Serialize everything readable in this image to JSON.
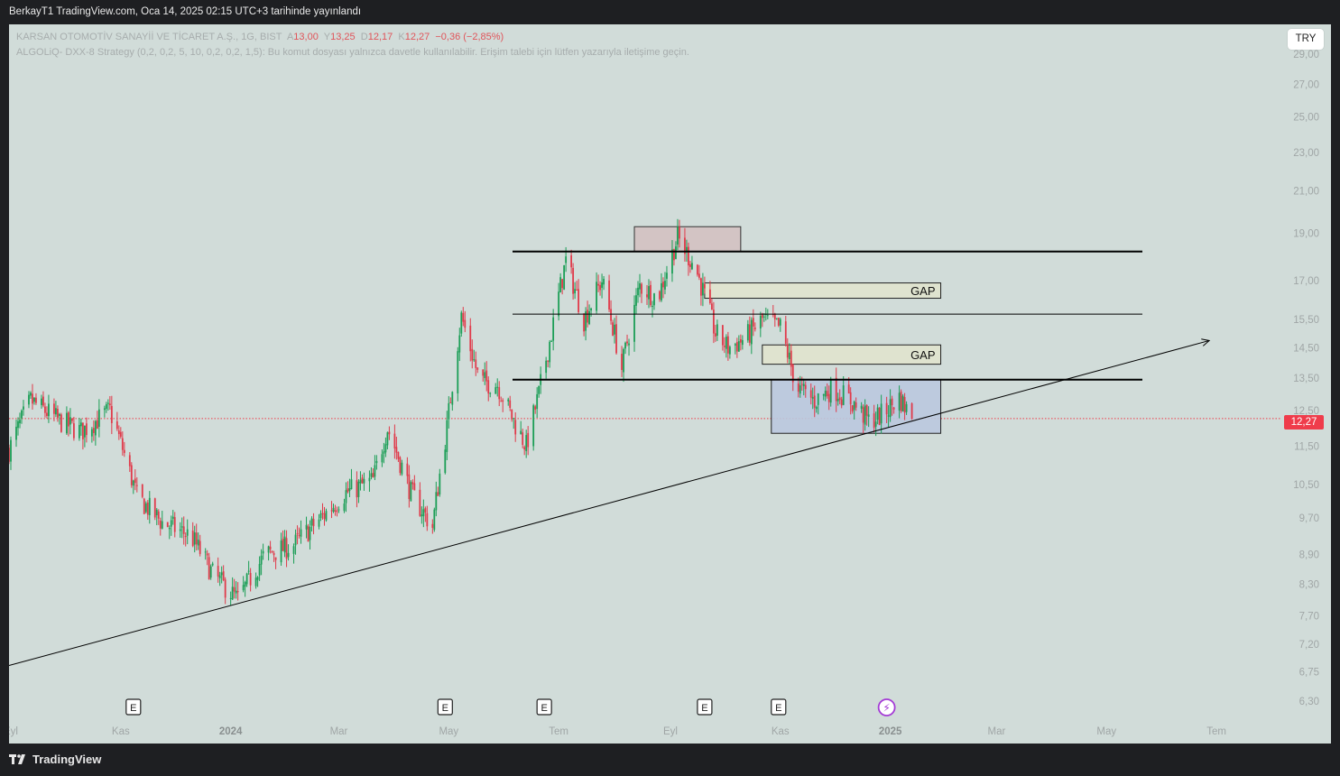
{
  "header": {
    "published": "BerkayT1 TradingView.com, Oca 14, 2025 02:15 UTC+3 tarihinde yayınlandı"
  },
  "legend": {
    "symbol": "KARSAN OTOMOTİV SANAYİİ VE TİCARET A.Ş., 1G, BIST",
    "open_label": "A",
    "open": "13,00",
    "high_label": "Y",
    "high": "13,25",
    "low_label": "D",
    "low": "12,17",
    "close_label": "K",
    "close": "12,27",
    "change": "−0,36 (−2,85%)",
    "strategy": "ALGOLiQ- DXX-8 Strategy (0,2, 0,2, 5, 10, 0,2, 0,2, 1,5): Bu komut dosyası yalnızca davetle kullanılabilir. Erişim talebi için lütfen yazarıyla iletişime geçin."
  },
  "currency": "TRY",
  "last_price_tag": "12,27",
  "footer": {
    "logo_text": "TradingView",
    "logo_icon": "tradingview-logo-icon"
  },
  "colors": {
    "up": "#1b9e56",
    "down": "#e03a4a",
    "background": "#d1dcd9",
    "price_line": "#ef3c4b"
  },
  "chart_data": {
    "type": "candlestick",
    "timeframe": "1G",
    "y_scale": "log",
    "ylim": [
      6.1,
      30.2
    ],
    "y_ticks": [
      "6,30",
      "6,75",
      "7,20",
      "7,70",
      "8,30",
      "8,90",
      "9,70",
      "10,50",
      "11,50",
      "12,50",
      "13,50",
      "14,50",
      "15,50",
      "17,00",
      "19,00",
      "21,00",
      "23,00",
      "25,00",
      "27,00",
      "29,00"
    ],
    "y_tick_values": [
      6.3,
      6.75,
      7.2,
      7.7,
      8.3,
      8.9,
      9.7,
      10.5,
      11.5,
      12.5,
      13.5,
      14.5,
      15.5,
      17.0,
      19.0,
      21.0,
      23.0,
      25.0,
      27.0,
      29.0
    ],
    "x_ticks": [
      "Eyl",
      "Kas",
      "2024",
      "Mar",
      "May",
      "Tem",
      "Eyl",
      "Kas",
      "2025",
      "Mar",
      "May",
      "Tem"
    ],
    "x_tick_dates": [
      "2023-09-01",
      "2023-11-01",
      "2024-01-01",
      "2024-03-01",
      "2024-05-01",
      "2024-07-01",
      "2024-09-01",
      "2024-11-01",
      "2025-01-01",
      "2025-03-01",
      "2025-05-01",
      "2025-07-01"
    ],
    "x_range": [
      "2023-08-31",
      "2025-08-06"
    ],
    "last_price": 12.27,
    "price_path_dates": [
      "2023-08-31",
      "2023-09-12",
      "2023-09-28",
      "2023-10-10",
      "2023-10-26",
      "2023-11-10",
      "2023-11-24",
      "2023-12-10",
      "2023-12-22",
      "2024-01-05",
      "2024-01-20",
      "2024-02-05",
      "2024-02-20",
      "2024-03-05",
      "2024-03-20",
      "2024-03-28",
      "2024-04-10",
      "2024-04-22",
      "2024-04-30",
      "2024-05-08",
      "2024-05-18",
      "2024-05-28",
      "2024-06-06",
      "2024-06-13",
      "2024-06-20",
      "2024-06-27",
      "2024-07-05",
      "2024-07-15",
      "2024-07-25",
      "2024-08-05",
      "2024-08-15",
      "2024-08-25",
      "2024-09-05",
      "2024-09-15",
      "2024-09-26",
      "2024-10-03",
      "2024-10-12",
      "2024-10-22",
      "2024-11-01",
      "2024-11-10",
      "2024-11-20",
      "2024-11-30",
      "2024-12-10",
      "2024-12-20",
      "2024-12-28",
      "2025-01-06",
      "2025-01-13"
    ],
    "price_path_values": [
      11.4,
      12.8,
      12.2,
      11.9,
      12.5,
      10.2,
      9.6,
      9.3,
      8.5,
      8.0,
      8.9,
      9.1,
      9.7,
      10.3,
      10.6,
      12.0,
      10.3,
      9.5,
      12.0,
      15.6,
      13.4,
      13.3,
      12.2,
      11.5,
      13.0,
      15.0,
      17.8,
      15.5,
      17.0,
      13.8,
      16.8,
      16.3,
      18.8,
      17.5,
      15.0,
      14.5,
      14.8,
      15.5,
      15.2,
      13.2,
      12.8,
      13.2,
      12.8,
      12.2,
      12.4,
      12.9,
      12.27
    ],
    "drawings": {
      "horizontal_levels": [
        18.2,
        15.7,
        13.45
      ],
      "gap_zones": [
        {
          "label": "GAP",
          "from": "2024-09-20",
          "to": "2025-01-29",
          "low": 16.3,
          "high": 16.9
        },
        {
          "label": "GAP",
          "from": "2024-10-22",
          "to": "2025-01-29",
          "low": 13.95,
          "high": 14.6
        }
      ],
      "resistance_box": {
        "from": "2024-08-12",
        "to": "2024-10-10",
        "low": 18.2,
        "high": 19.3
      },
      "range_box": {
        "from": "2024-10-27",
        "to": "2025-01-29",
        "low": 11.85,
        "high": 13.45
      },
      "trendline": {
        "from": [
          "2023-08-31",
          6.85
        ],
        "to": [
          "2025-06-27",
          14.75
        ]
      }
    },
    "event_markers": [
      {
        "label": "E",
        "type": "earnings",
        "date": "2023-11-08"
      },
      {
        "label": "E",
        "type": "earnings",
        "date": "2024-04-29"
      },
      {
        "label": "E",
        "type": "earnings",
        "date": "2024-06-23"
      },
      {
        "label": "E",
        "type": "earnings",
        "date": "2024-09-20"
      },
      {
        "label": "E",
        "type": "earnings",
        "date": "2024-10-31"
      },
      {
        "label": "⚡",
        "type": "flash",
        "date": "2024-12-30"
      }
    ]
  }
}
